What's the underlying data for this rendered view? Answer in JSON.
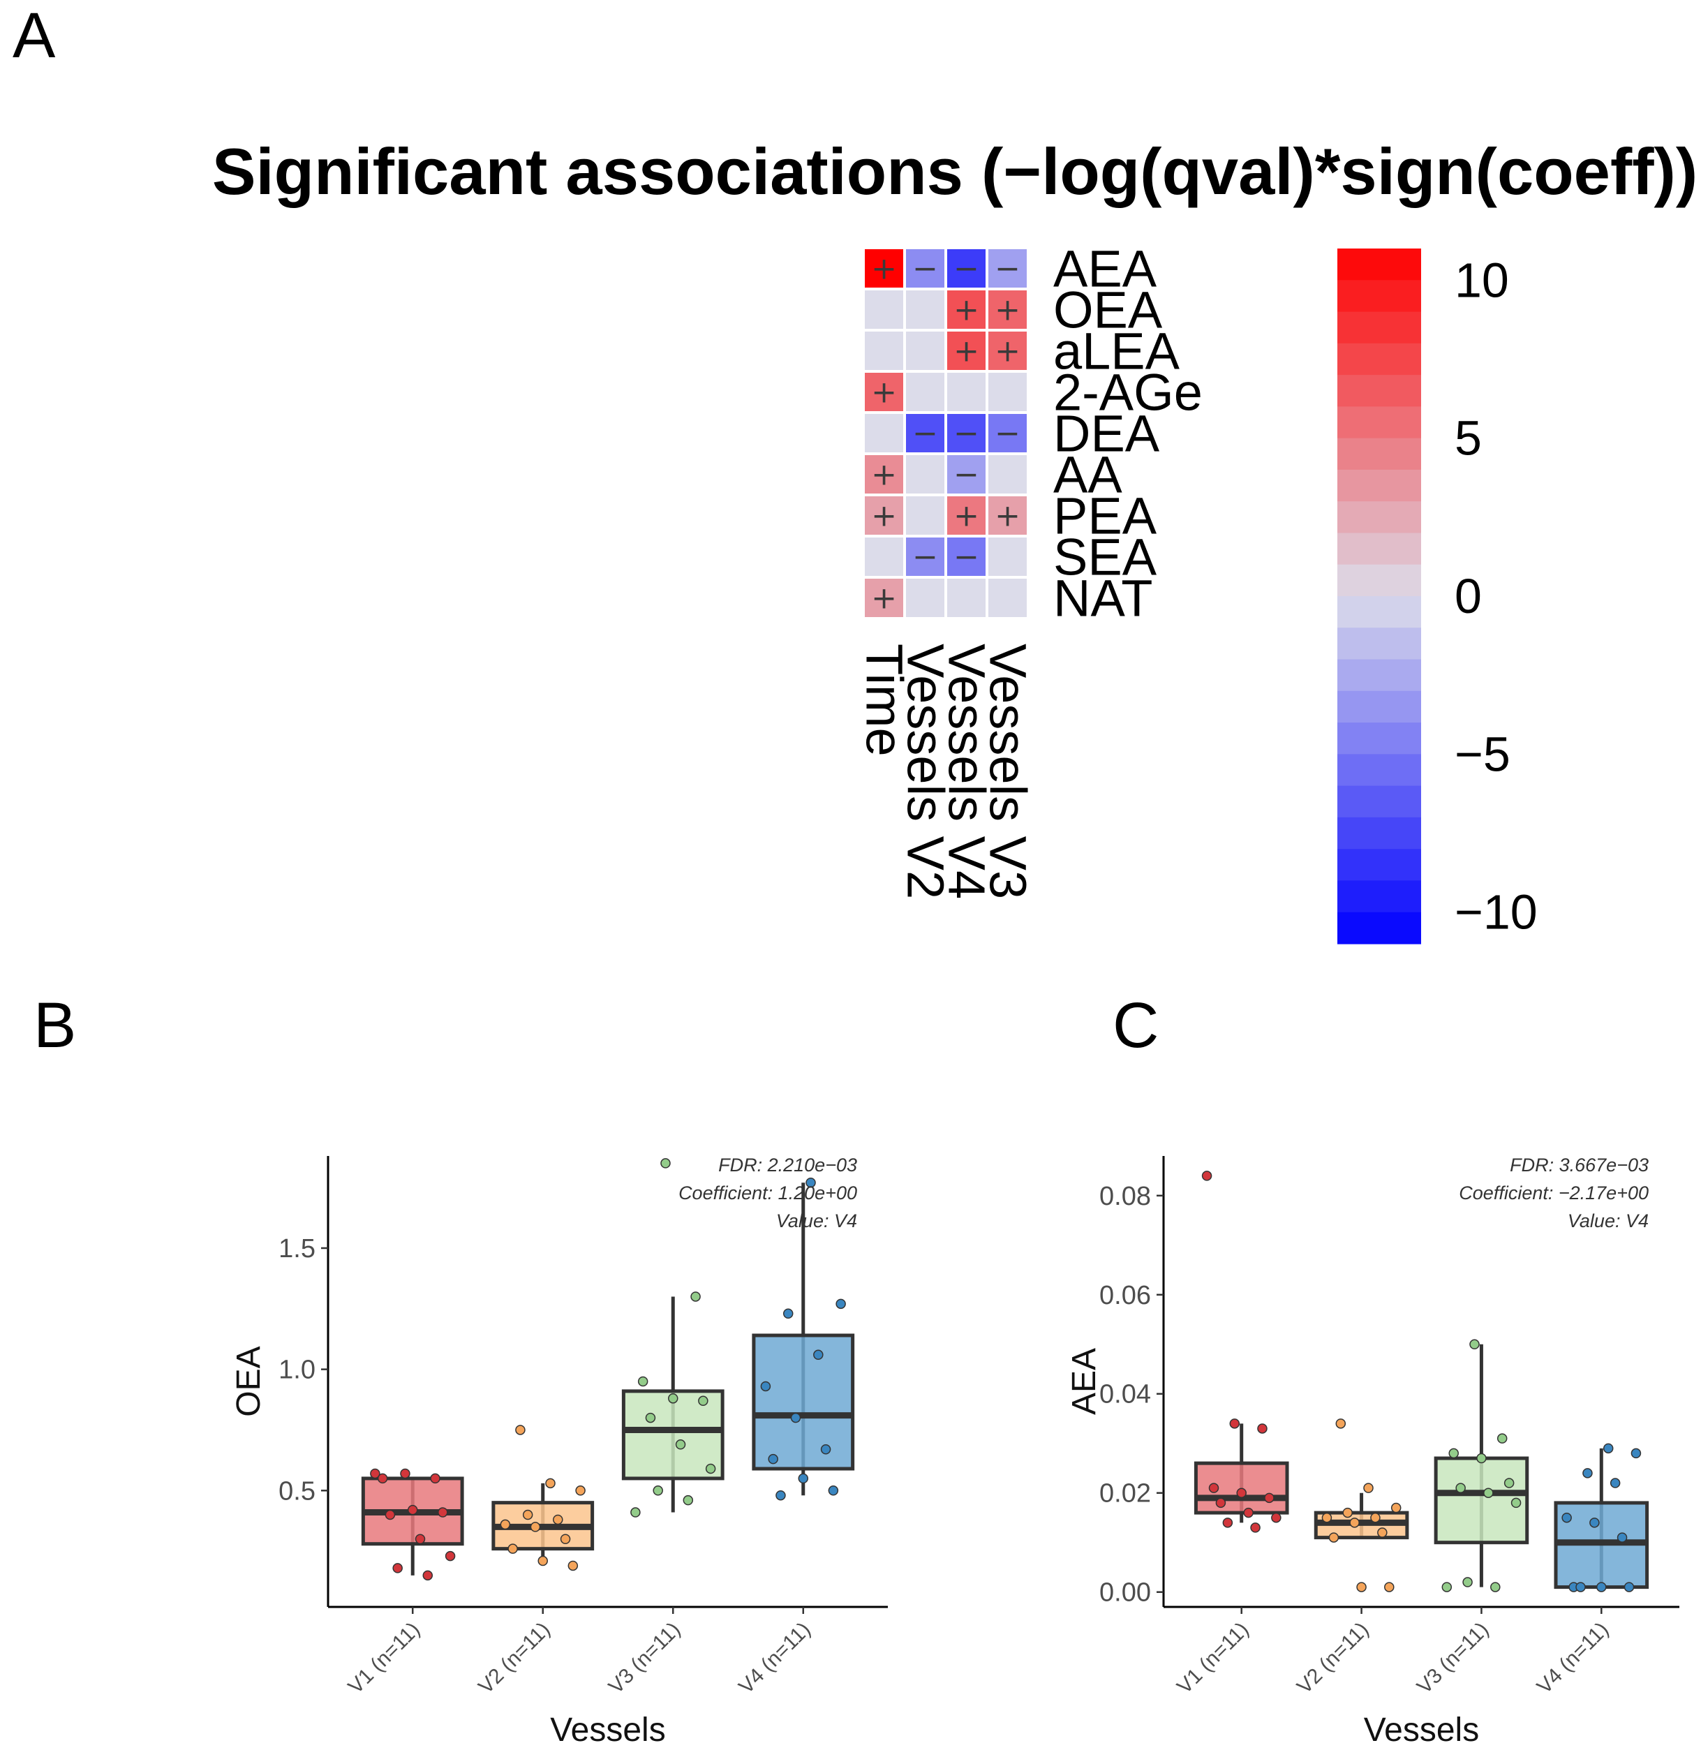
{
  "panels": {
    "a": "A",
    "b": "B",
    "c": "C"
  },
  "chart_data": [
    {
      "type": "heatmap",
      "title": "Significant associations (−log(qval)*sign(coeff))",
      "rows": [
        "AEA",
        "OEA",
        "aLEA",
        "2-AGe",
        "DEA",
        "AA",
        "PEA",
        "SEA",
        "NAT"
      ],
      "columns": [
        "Time",
        "Vessels V2",
        "Vessels V4",
        "Vessels V3"
      ],
      "values": [
        [
          11,
          -4,
          -8,
          -3
        ],
        [
          0,
          0,
          7,
          6
        ],
        [
          0,
          0,
          7,
          6
        ],
        [
          6,
          0,
          0,
          0
        ],
        [
          0,
          -7,
          -7,
          -5
        ],
        [
          4,
          0,
          -3,
          0
        ],
        [
          3,
          0,
          5,
          3
        ],
        [
          0,
          -4,
          -5,
          0
        ],
        [
          3,
          0,
          0,
          0
        ]
      ],
      "signs": [
        [
          "+",
          "−",
          "−",
          "−"
        ],
        [
          "",
          "",
          "+",
          "+"
        ],
        [
          "",
          "",
          "+",
          "+"
        ],
        [
          "+",
          "",
          "",
          ""
        ],
        [
          "",
          "−",
          "−",
          "−"
        ],
        [
          "+",
          "",
          "−",
          ""
        ],
        [
          "+",
          "",
          "+",
          "+"
        ],
        [
          "",
          "−",
          "−",
          ""
        ],
        [
          "+",
          "",
          "",
          ""
        ]
      ],
      "colorbar": {
        "range": [
          -11,
          11
        ],
        "ticks": [
          10,
          5,
          0,
          -5,
          -10
        ],
        "tick_labels": [
          "10",
          "5",
          "0",
          "−5",
          "−10"
        ],
        "low": "#0000ff",
        "mid": "#dcdcea",
        "high": "#ff0000"
      }
    },
    {
      "type": "box",
      "xlabel": "Vessels",
      "ylabel": "OEA",
      "categories": [
        "V1 (n=11)",
        "V2 (n=11)",
        "V3 (n=11)",
        "V4 (n=11)"
      ],
      "colors": [
        "#e8797c",
        "#fbc48d",
        "#c8e6bd",
        "#6fa9d3"
      ],
      "point_colors": [
        "#d2363b",
        "#f4a45a",
        "#93cc8a",
        "#3a86c0"
      ],
      "ylim": [
        0.02,
        1.88
      ],
      "yticks": [
        0.5,
        1.0,
        1.5
      ],
      "ytick_labels": [
        "0.5",
        "1.0",
        "1.5"
      ],
      "boxes": [
        {
          "whisker_low": 0.15,
          "q1": 0.28,
          "median": 0.41,
          "q3": 0.55,
          "whisker_high": 0.55
        },
        {
          "whisker_low": 0.19,
          "q1": 0.26,
          "median": 0.35,
          "q3": 0.45,
          "whisker_high": 0.53
        },
        {
          "whisker_low": 0.41,
          "q1": 0.55,
          "median": 0.75,
          "q3": 0.91,
          "whisker_high": 1.3
        },
        {
          "whisker_low": 0.48,
          "q1": 0.59,
          "median": 0.81,
          "q3": 1.14,
          "whisker_high": 1.77
        }
      ],
      "points": [
        [
          0.57,
          0.57,
          0.55,
          0.55,
          0.42,
          0.41,
          0.4,
          0.3,
          0.23,
          0.18,
          0.15
        ],
        [
          0.75,
          0.53,
          0.5,
          0.4,
          0.38,
          0.36,
          0.35,
          0.3,
          0.26,
          0.21,
          0.19
        ],
        [
          1.85,
          1.3,
          0.95,
          0.88,
          0.87,
          0.8,
          0.69,
          0.59,
          0.5,
          0.46,
          0.41
        ],
        [
          1.77,
          1.27,
          1.23,
          1.06,
          0.93,
          0.8,
          0.67,
          0.63,
          0.55,
          0.5,
          0.48
        ]
      ],
      "annotation": [
        "FDR: 2.210e−03",
        "Coefficient: 1.20e+00",
        "Value: V4"
      ]
    },
    {
      "type": "box",
      "xlabel": "Vessels",
      "ylabel": "AEA",
      "categories": [
        "V1 (n=11)",
        "V2 (n=11)",
        "V3 (n=11)",
        "V4 (n=11)"
      ],
      "colors": [
        "#e8797c",
        "#fbc48d",
        "#c8e6bd",
        "#6fa9d3"
      ],
      "point_colors": [
        "#d2363b",
        "#f4a45a",
        "#93cc8a",
        "#3a86c0"
      ],
      "ylim": [
        -0.003,
        0.088
      ],
      "yticks": [
        0.0,
        0.02,
        0.04,
        0.06,
        0.08
      ],
      "ytick_labels": [
        "0.00",
        "0.02",
        "0.04",
        "0.06",
        "0.08"
      ],
      "boxes": [
        {
          "whisker_low": 0.014,
          "q1": 0.016,
          "median": 0.019,
          "q3": 0.026,
          "whisker_high": 0.034
        },
        {
          "whisker_low": 0.011,
          "q1": 0.011,
          "median": 0.014,
          "q3": 0.016,
          "whisker_high": 0.02
        },
        {
          "whisker_low": 0.001,
          "q1": 0.01,
          "median": 0.02,
          "q3": 0.027,
          "whisker_high": 0.05
        },
        {
          "whisker_low": 0.001,
          "q1": 0.001,
          "median": 0.01,
          "q3": 0.018,
          "whisker_high": 0.029
        }
      ],
      "points": [
        [
          0.084,
          0.034,
          0.033,
          0.021,
          0.02,
          0.019,
          0.018,
          0.016,
          0.015,
          0.014,
          0.013
        ],
        [
          0.034,
          0.021,
          0.017,
          0.016,
          0.015,
          0.015,
          0.014,
          0.012,
          0.011,
          0.001,
          0.001
        ],
        [
          0.05,
          0.031,
          0.028,
          0.027,
          0.022,
          0.021,
          0.02,
          0.018,
          0.002,
          0.001,
          0.001
        ],
        [
          0.029,
          0.028,
          0.024,
          0.022,
          0.015,
          0.014,
          0.011,
          0.001,
          0.001,
          0.001,
          0.001
        ]
      ],
      "annotation": [
        "FDR: 3.667e−03",
        "Coefficient: −2.17e+00",
        "Value: V4"
      ]
    }
  ]
}
